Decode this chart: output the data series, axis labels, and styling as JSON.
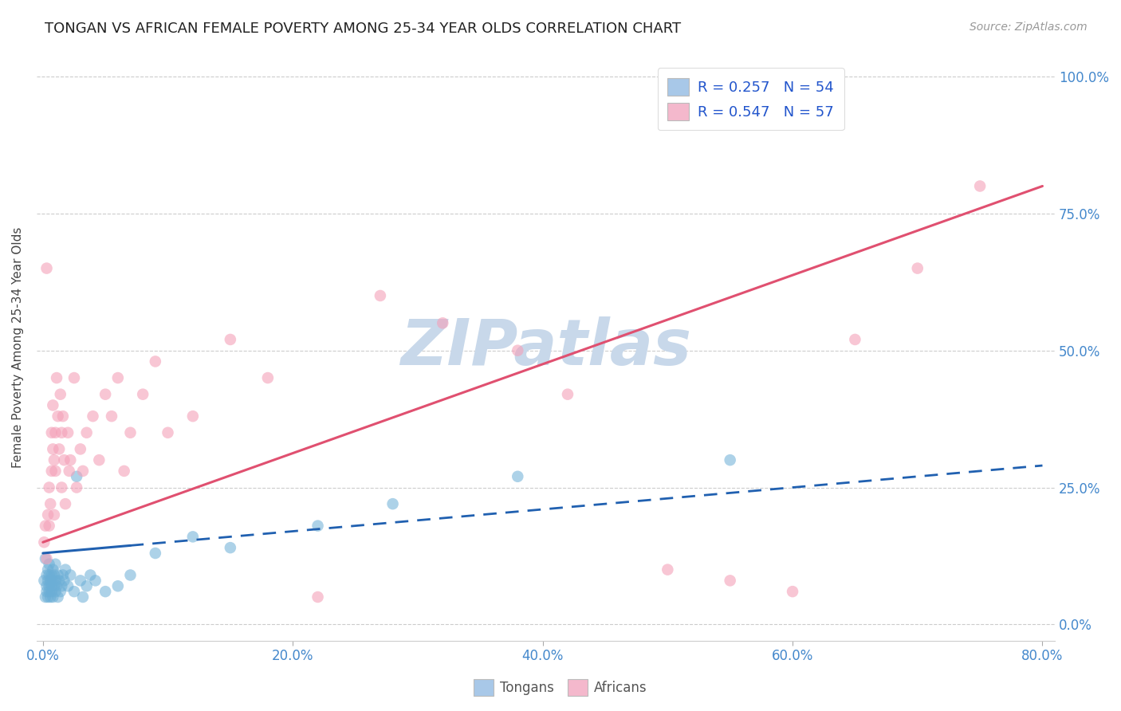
{
  "title": "TONGAN VS AFRICAN FEMALE POVERTY AMONG 25-34 YEAR OLDS CORRELATION CHART",
  "source": "Source: ZipAtlas.com",
  "ylabel_label": "Female Poverty Among 25-34 Year Olds",
  "legend_label1": "R = 0.257   N = 54",
  "legend_label2": "R = 0.547   N = 57",
  "legend_color1": "#a8c8e8",
  "legend_color2": "#f4b8cc",
  "tongan_color": "#6baed6",
  "african_color": "#f4a0b8",
  "trendline_tongan_color": "#2060b0",
  "trendline_african_color": "#e05070",
  "watermark": "ZIPatlas",
  "watermark_color": "#c8d8ea",
  "tongan_x": [
    0.001,
    0.002,
    0.002,
    0.003,
    0.003,
    0.003,
    0.004,
    0.004,
    0.004,
    0.005,
    0.005,
    0.005,
    0.005,
    0.006,
    0.006,
    0.007,
    0.007,
    0.007,
    0.008,
    0.008,
    0.008,
    0.009,
    0.009,
    0.01,
    0.01,
    0.01,
    0.011,
    0.012,
    0.012,
    0.013,
    0.014,
    0.015,
    0.016,
    0.017,
    0.018,
    0.02,
    0.022,
    0.025,
    0.027,
    0.03,
    0.032,
    0.035,
    0.038,
    0.042,
    0.05,
    0.06,
    0.07,
    0.09,
    0.12,
    0.15,
    0.22,
    0.28,
    0.38,
    0.55
  ],
  "tongan_y": [
    0.08,
    0.05,
    0.12,
    0.07,
    0.09,
    0.06,
    0.08,
    0.1,
    0.05,
    0.07,
    0.09,
    0.06,
    0.11,
    0.08,
    0.05,
    0.07,
    0.09,
    0.06,
    0.08,
    0.1,
    0.05,
    0.07,
    0.09,
    0.06,
    0.08,
    0.11,
    0.07,
    0.05,
    0.09,
    0.08,
    0.06,
    0.07,
    0.09,
    0.08,
    0.1,
    0.07,
    0.09,
    0.06,
    0.27,
    0.08,
    0.05,
    0.07,
    0.09,
    0.08,
    0.06,
    0.07,
    0.09,
    0.13,
    0.16,
    0.14,
    0.18,
    0.22,
    0.27,
    0.3
  ],
  "african_x": [
    0.001,
    0.002,
    0.003,
    0.003,
    0.004,
    0.005,
    0.005,
    0.006,
    0.007,
    0.007,
    0.008,
    0.008,
    0.009,
    0.009,
    0.01,
    0.01,
    0.011,
    0.012,
    0.013,
    0.014,
    0.015,
    0.015,
    0.016,
    0.017,
    0.018,
    0.02,
    0.021,
    0.022,
    0.025,
    0.027,
    0.03,
    0.032,
    0.035,
    0.04,
    0.045,
    0.05,
    0.055,
    0.06,
    0.065,
    0.07,
    0.08,
    0.09,
    0.1,
    0.12,
    0.15,
    0.18,
    0.22,
    0.27,
    0.32,
    0.38,
    0.42,
    0.5,
    0.55,
    0.6,
    0.65,
    0.7,
    0.75
  ],
  "african_y": [
    0.15,
    0.18,
    0.12,
    0.65,
    0.2,
    0.25,
    0.18,
    0.22,
    0.35,
    0.28,
    0.32,
    0.4,
    0.3,
    0.2,
    0.35,
    0.28,
    0.45,
    0.38,
    0.32,
    0.42,
    0.25,
    0.35,
    0.38,
    0.3,
    0.22,
    0.35,
    0.28,
    0.3,
    0.45,
    0.25,
    0.32,
    0.28,
    0.35,
    0.38,
    0.3,
    0.42,
    0.38,
    0.45,
    0.28,
    0.35,
    0.42,
    0.48,
    0.35,
    0.38,
    0.52,
    0.45,
    0.05,
    0.6,
    0.55,
    0.5,
    0.42,
    0.1,
    0.08,
    0.06,
    0.52,
    0.65,
    0.8
  ],
  "xlim": [
    0.0,
    0.8
  ],
  "ylim": [
    0.0,
    1.0
  ],
  "x_ticks": [
    0.0,
    0.2,
    0.4,
    0.6,
    0.8
  ],
  "y_ticks": [
    0.0,
    0.25,
    0.5,
    0.75,
    1.0
  ]
}
